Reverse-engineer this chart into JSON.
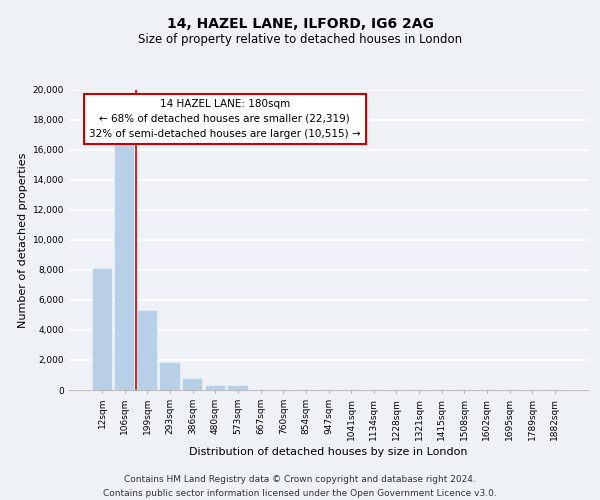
{
  "title": "14, HAZEL LANE, ILFORD, IG6 2AG",
  "subtitle": "Size of property relative to detached houses in London",
  "xlabel": "Distribution of detached houses by size in London",
  "ylabel": "Number of detached properties",
  "categories": [
    "12sqm",
    "106sqm",
    "199sqm",
    "293sqm",
    "386sqm",
    "480sqm",
    "573sqm",
    "667sqm",
    "760sqm",
    "854sqm",
    "947sqm",
    "1041sqm",
    "1134sqm",
    "1228sqm",
    "1321sqm",
    "1415sqm",
    "1508sqm",
    "1602sqm",
    "1695sqm",
    "1789sqm",
    "1882sqm"
  ],
  "bar_heights": [
    8100,
    16500,
    5300,
    1800,
    750,
    300,
    300,
    0,
    0,
    0,
    0,
    0,
    0,
    0,
    0,
    0,
    0,
    0,
    0,
    0,
    0
  ],
  "bar_color": "#b8cfe8",
  "annotation_title": "14 HAZEL LANE: 180sqm",
  "annotation_line1": "← 68% of detached houses are smaller (22,319)",
  "annotation_line2": "32% of semi-detached houses are larger (10,515) →",
  "annotation_box_color": "#ffffff",
  "annotation_box_edge": "#cc0000",
  "vline_color": "#cc0000",
  "ylim": [
    0,
    20000
  ],
  "yticks": [
    0,
    2000,
    4000,
    6000,
    8000,
    10000,
    12000,
    14000,
    16000,
    18000,
    20000
  ],
  "footer_line1": "Contains HM Land Registry data © Crown copyright and database right 2024.",
  "footer_line2": "Contains public sector information licensed under the Open Government Licence v3.0.",
  "background_color": "#eef2f7",
  "grid_color": "#ffffff",
  "title_fontsize": 10,
  "subtitle_fontsize": 8.5,
  "axis_label_fontsize": 8,
  "tick_fontsize": 6.5,
  "annotation_fontsize": 7.5,
  "footer_fontsize": 6.5
}
